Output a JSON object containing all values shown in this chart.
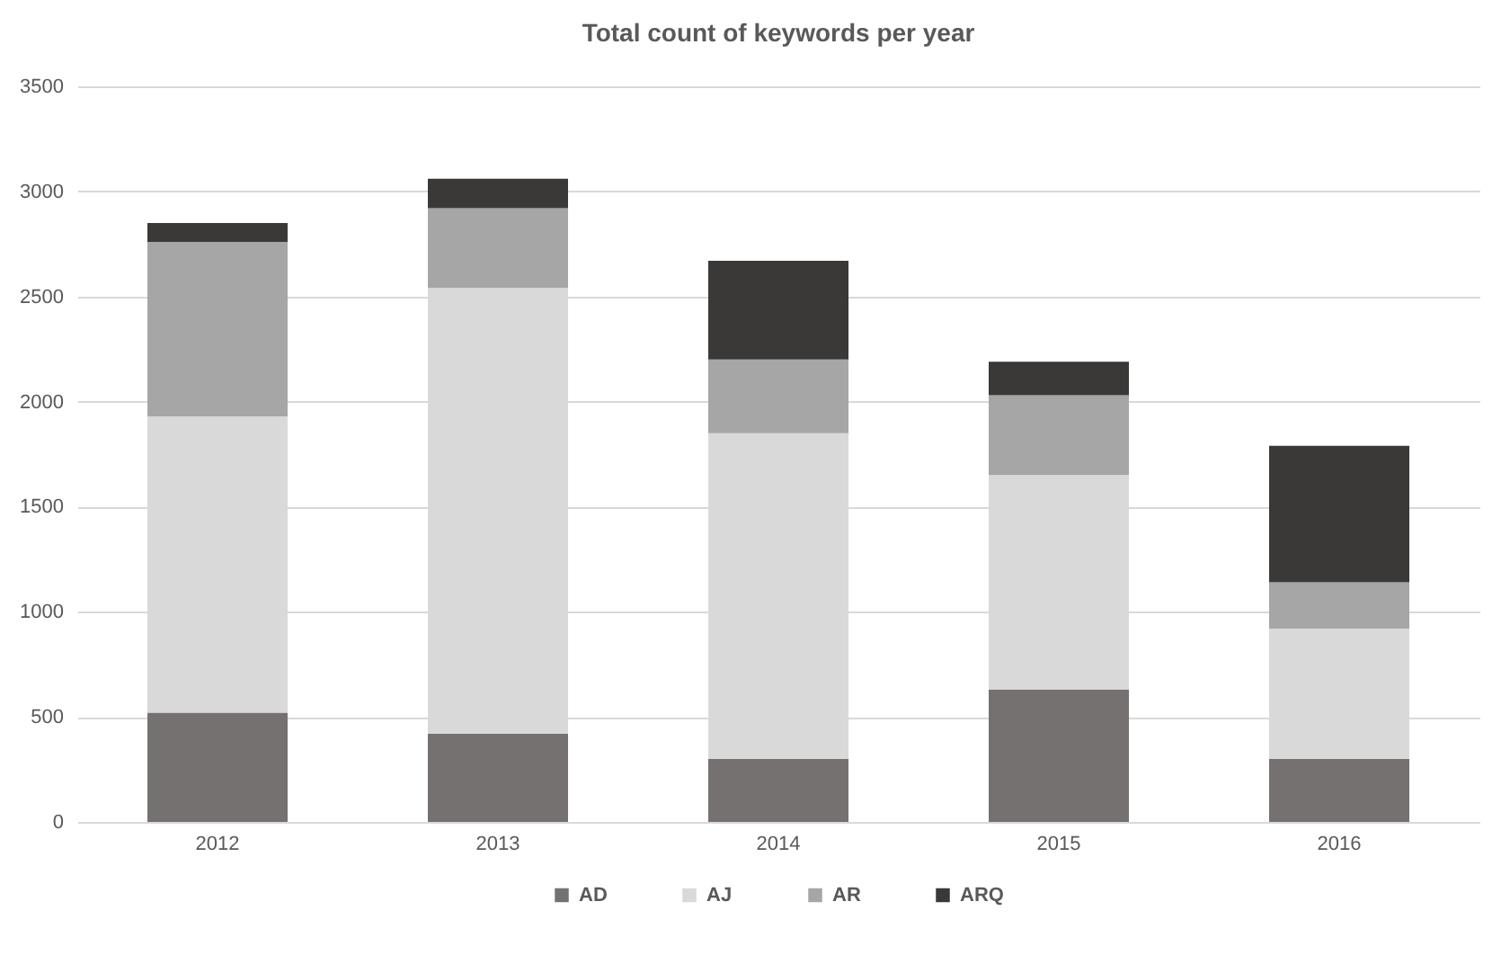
{
  "chart_data": {
    "type": "bar",
    "title": "Total count of keywords per year",
    "categories": [
      "2012",
      "2013",
      "2014",
      "2015",
      "2016"
    ],
    "stacked": true,
    "series": [
      {
        "name": "AD",
        "color": "#767171",
        "values": [
          520,
          420,
          300,
          630,
          300
        ]
      },
      {
        "name": "AJ",
        "color": "#d9d9d9",
        "values": [
          1410,
          2120,
          1550,
          1020,
          620
        ]
      },
      {
        "name": "AR",
        "color": "#a6a6a6",
        "values": [
          830,
          380,
          350,
          380,
          220
        ]
      },
      {
        "name": "ARQ",
        "color": "#3b3838",
        "values": [
          90,
          140,
          470,
          160,
          650
        ]
      }
    ],
    "ylim": [
      0,
      3500
    ],
    "yticks": [
      0,
      500,
      1000,
      1500,
      2000,
      2500,
      3000,
      3500
    ],
    "grid": "y",
    "legend": "bottom"
  }
}
